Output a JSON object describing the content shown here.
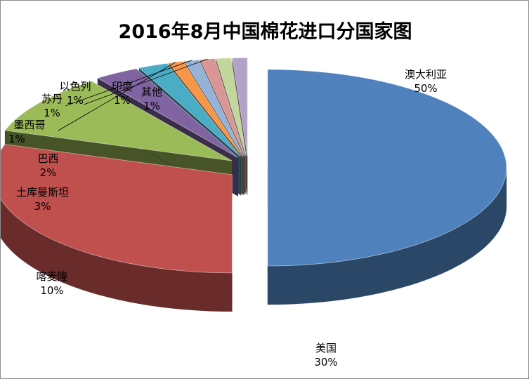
{
  "chart_data": {
    "type": "pie",
    "title": "2016年8月中国棉花进口分国家图",
    "slices": [
      {
        "name": "澳大利亚",
        "value": 50,
        "label": "50%",
        "color": "#4f81bd"
      },
      {
        "name": "美国",
        "value": 30,
        "label": "30%",
        "color": "#c0504d"
      },
      {
        "name": "喀麦隆",
        "value": 10,
        "label": "10%",
        "color": "#9bbb59"
      },
      {
        "name": "土库曼斯坦",
        "value": 3,
        "label": "3%",
        "color": "#8064a2"
      },
      {
        "name": "巴西",
        "value": 2,
        "label": "2%",
        "color": "#4bacc6"
      },
      {
        "name": "墨西哥",
        "value": 1,
        "label": "1%",
        "color": "#f79646"
      },
      {
        "name": "苏丹",
        "value": 1,
        "label": "1%",
        "color": "#95b3d7"
      },
      {
        "name": "以色列",
        "value": 1,
        "label": "1%",
        "color": "#d99694"
      },
      {
        "name": "印度",
        "value": 1,
        "label": "1%",
        "color": "#c3d69b"
      },
      {
        "name": "其他",
        "value": 1,
        "label": "1%",
        "color": "#b3a2c7"
      }
    ]
  }
}
